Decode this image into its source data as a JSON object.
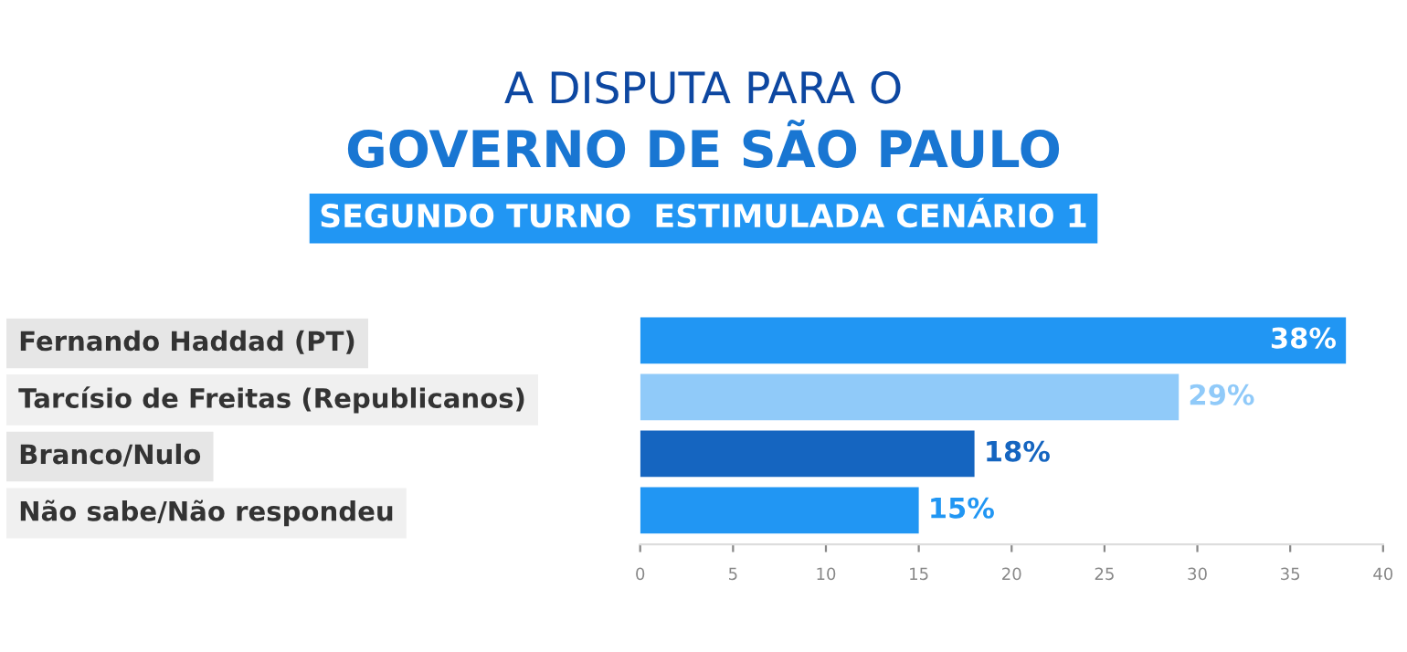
{
  "chart_data": {
    "type": "bar",
    "orientation": "horizontal",
    "title": "A DISPUTA PARA O\nGOVERNO DE SÃO PAULO",
    "subtitle": "SEGUNDO TURNO  ESTIMULADA CENÁRIO 1",
    "categories": [
      "Fernando Haddad (PT)",
      "Tarcísio de Freitas (Republicanos)",
      "Branco/Nulo",
      "Não sabe/Não respondeu"
    ],
    "values": [
      38,
      29,
      18,
      15
    ],
    "colors": [
      "#2196f3",
      "#90caf9",
      "#1565c0",
      "#2196f3"
    ],
    "value_labels": [
      "38%",
      "29%",
      "18%",
      "15%"
    ],
    "xlim": [
      0,
      40
    ],
    "xticks": [
      0,
      5,
      10,
      15,
      20,
      25,
      30,
      35,
      40
    ],
    "grid": false,
    "legend": false
  }
}
